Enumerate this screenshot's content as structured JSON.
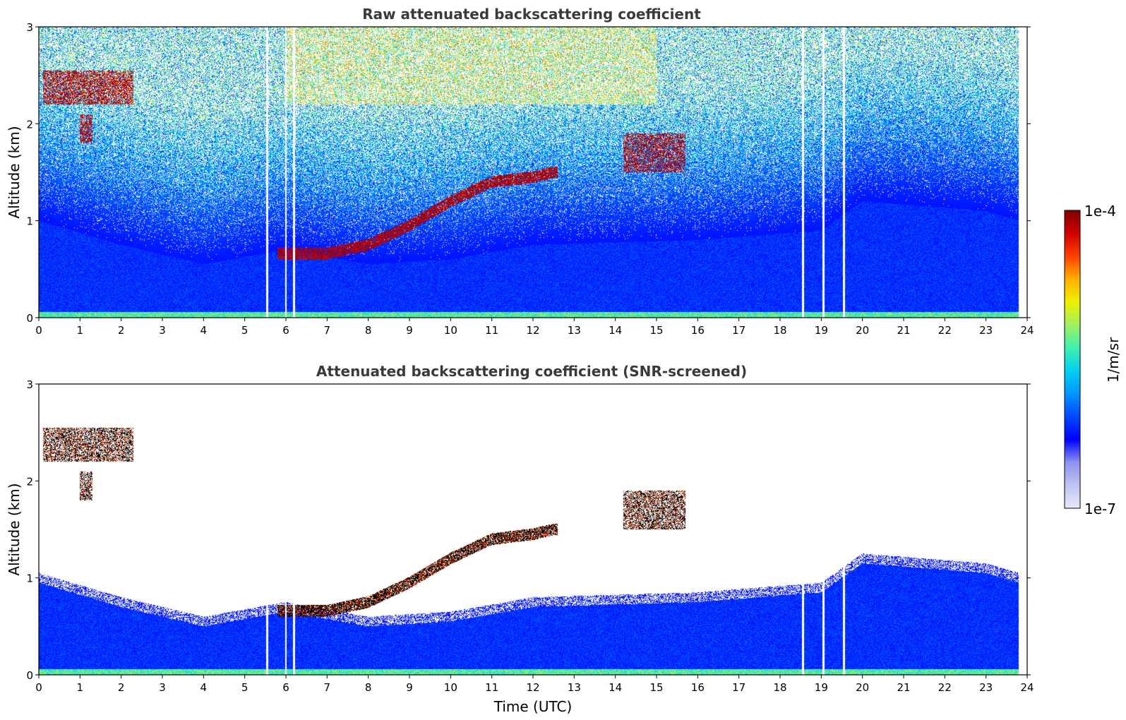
{
  "chart_data": [
    {
      "type": "heatmap",
      "title": "Raw attenuated backscattering coefficient",
      "xlabel": "",
      "ylabel": "Altitude (km)",
      "xlim": [
        0,
        24
      ],
      "ylim": [
        0,
        3
      ],
      "xticks": [
        "0",
        "1",
        "2",
        "3",
        "4",
        "5",
        "6",
        "7",
        "8",
        "9",
        "10",
        "11",
        "12",
        "13",
        "14",
        "15",
        "16",
        "17",
        "18",
        "19",
        "20",
        "21",
        "22",
        "23",
        "24"
      ],
      "yticks": [
        "0",
        "1",
        "2",
        "3"
      ],
      "data_end_hour": 23.8,
      "gaps_hours": [
        5.55,
        6.0,
        6.2,
        18.55,
        19.05,
        19.55
      ],
      "features": [
        {
          "kind": "cloud",
          "t_start": 0.1,
          "t_end": 2.3,
          "alt_km": [
            2.2,
            2.55
          ]
        },
        {
          "kind": "cloud",
          "t_start": 1.0,
          "t_end": 1.3,
          "alt_km": [
            1.8,
            2.1
          ]
        },
        {
          "kind": "layer_top",
          "points": [
            [
              5.8,
              0.66
            ],
            [
              7.0,
              0.66
            ],
            [
              8.0,
              0.75
            ],
            [
              9.0,
              0.95
            ],
            [
              10.0,
              1.2
            ],
            [
              11.0,
              1.4
            ],
            [
              12.0,
              1.45
            ],
            [
              12.5,
              1.5
            ]
          ]
        },
        {
          "kind": "cloud",
          "t_start": 14.2,
          "t_end": 15.7,
          "alt_km": [
            1.5,
            1.9
          ]
        }
      ]
    },
    {
      "type": "heatmap",
      "title": "Attenuated backscattering coefficient (SNR-screened)",
      "xlabel": "Time (UTC)",
      "ylabel": "Altitude (km)",
      "xlim": [
        0,
        24
      ],
      "ylim": [
        0,
        3
      ],
      "xticks": [
        "0",
        "1",
        "2",
        "3",
        "4",
        "5",
        "6",
        "7",
        "8",
        "9",
        "10",
        "11",
        "12",
        "13",
        "14",
        "15",
        "16",
        "17",
        "18",
        "19",
        "20",
        "21",
        "22",
        "23",
        "24"
      ],
      "yticks": [
        "0",
        "1",
        "2",
        "3"
      ],
      "data_end_hour": 23.8,
      "boundary_layer_top": [
        [
          0,
          1.0
        ],
        [
          2,
          0.75
        ],
        [
          4,
          0.55
        ],
        [
          6,
          0.7
        ],
        [
          8,
          0.55
        ],
        [
          10,
          0.6
        ],
        [
          12,
          0.75
        ],
        [
          16,
          0.8
        ],
        [
          19,
          0.9
        ],
        [
          20,
          1.2
        ],
        [
          23,
          1.1
        ],
        [
          23.8,
          1.0
        ]
      ]
    }
  ],
  "colorbar": {
    "max_label": "1e-4",
    "min_label": "1e-7",
    "unit_label": "1/m/sr",
    "colors": [
      "#e8e8f8",
      "#c0c4f2",
      "#8c92f0",
      "#0000ff",
      "#0048ff",
      "#0096ff",
      "#00d0f0",
      "#40f0b0",
      "#a0f060",
      "#f0f000",
      "#ffb000",
      "#ff4000",
      "#d00000",
      "#800000"
    ]
  }
}
